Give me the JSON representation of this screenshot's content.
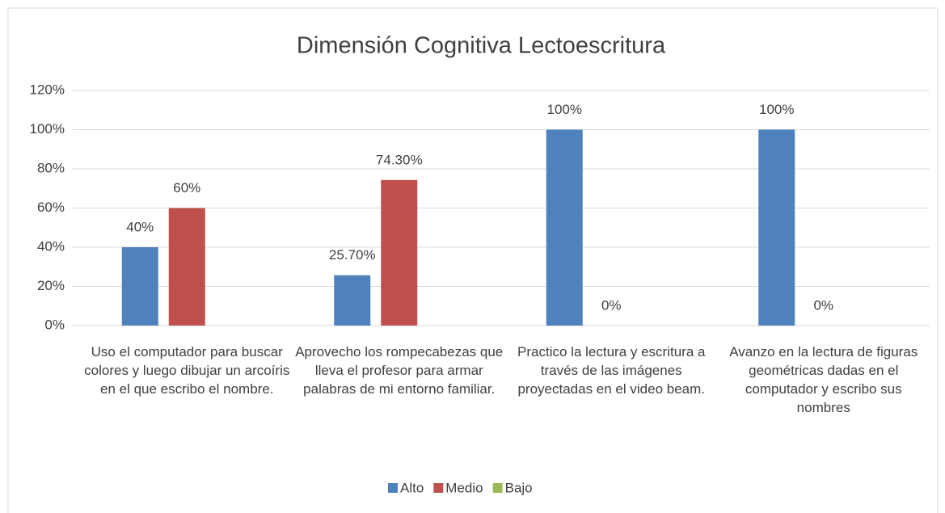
{
  "chart_data": {
    "type": "bar",
    "title": "Dimensión Cognitiva Lectoescritura",
    "categories": [
      "Uso el computador para buscar colores y luego dibujar un arcoíris en el que escribo el nombre.",
      "Aprovecho los rompecabezas que lleva el profesor para armar palabras de mi entorno familiar.",
      "Practico la lectura y escritura a través de las imágenes proyectadas en el video beam.",
      "Avanzo en la lectura de figuras geométricas dadas en el computador y escribo sus nombres"
    ],
    "series": [
      {
        "name": "Alto",
        "color": "#4f81bd",
        "values": [
          40,
          25.7,
          100,
          100
        ],
        "value_labels": [
          "40%",
          "25.70%",
          "100%",
          "100%"
        ]
      },
      {
        "name": "Medio",
        "color": "#c0504d",
        "values": [
          60,
          74.3,
          0,
          0
        ],
        "value_labels": [
          "60%",
          "74.30%",
          "0%",
          "0%"
        ]
      },
      {
        "name": "Bajo",
        "color": "#9bbb59",
        "values": [
          null,
          null,
          null,
          null
        ]
      }
    ],
    "ylim": [
      0,
      120
    ],
    "yticks": [
      {
        "value": 0,
        "label": "0%"
      },
      {
        "value": 20,
        "label": "20%"
      },
      {
        "value": 40,
        "label": "40%"
      },
      {
        "value": 60,
        "label": "60%"
      },
      {
        "value": 80,
        "label": "80%"
      },
      {
        "value": 100,
        "label": "100%"
      },
      {
        "value": 120,
        "label": "120%"
      }
    ],
    "grid": true,
    "legend": "bottom"
  }
}
